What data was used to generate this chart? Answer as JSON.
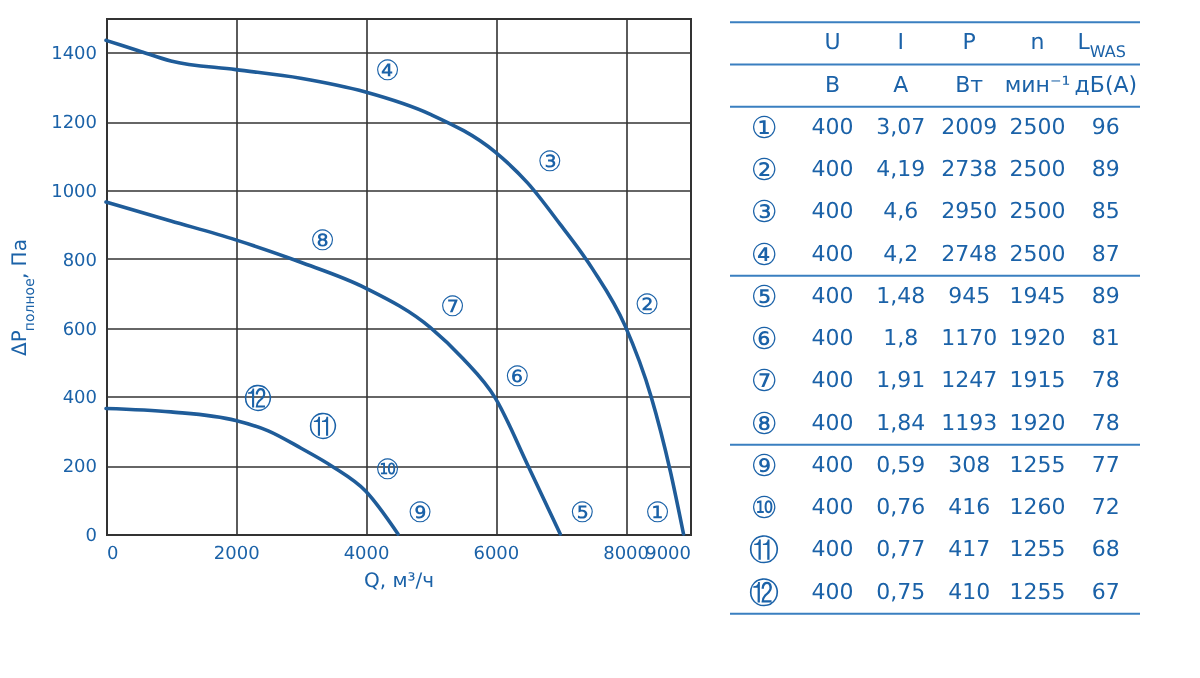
{
  "chart_data": [
    {
      "type": "line",
      "xlabel": "Q, м³/ч",
      "ylabel": "ΔP$_{полное}$, Па",
      "xlim": [
        0,
        9000
      ],
      "ylim": [
        0,
        1500
      ],
      "xticks": [
        0,
        2000,
        4000,
        6000,
        8000,
        9000
      ],
      "yticks": [
        0,
        200,
        400,
        600,
        800,
        1000,
        1200,
        1400
      ],
      "grid": true,
      "legend": false,
      "marker": "none",
      "line_style": "solid",
      "series": [
        {
          "color": "#1f5c99",
          "x": [
            0,
            500,
            1000,
            2000,
            3000,
            4000,
            5000,
            6000,
            6500,
            7000,
            7500,
            8000,
            8400,
            8700,
            8900
          ],
          "values": [
            1435,
            1405,
            1375,
            1350,
            1325,
            1285,
            1220,
            1110,
            1020,
            900,
            770,
            605,
            400,
            180,
            0
          ]
        },
        {
          "color": "#1f5c99",
          "x": [
            0,
            1000,
            2000,
            3000,
            4000,
            5000,
            5500,
            6000,
            6500,
            7000
          ],
          "values": [
            965,
            910,
            855,
            790,
            715,
            600,
            510,
            395,
            200,
            0
          ]
        },
        {
          "color": "#1f5c99",
          "x": [
            0,
            1000,
            2000,
            2500,
            3000,
            3500,
            4000,
            4500
          ],
          "values": [
            365,
            355,
            330,
            300,
            250,
            195,
            125,
            0
          ]
        }
      ],
      "annotations": [
        {
          "text": "①",
          "x": 8900,
          "y": 0
        },
        {
          "text": "②",
          "x": 8000,
          "y": 605
        },
        {
          "text": "③",
          "x": 6500,
          "y": 1020
        },
        {
          "text": "④",
          "x": 4000,
          "y": 1285
        },
        {
          "text": "⑤",
          "x": 7000,
          "y": 0
        },
        {
          "text": "⑥",
          "x": 6000,
          "y": 395
        },
        {
          "text": "⑦",
          "x": 5000,
          "y": 600
        },
        {
          "text": "⑧",
          "x": 3000,
          "y": 790
        },
        {
          "text": "⑨",
          "x": 4500,
          "y": 0
        },
        {
          "text": "⑩",
          "x": 4000,
          "y": 125
        },
        {
          "text": "⑪",
          "x": 3000,
          "y": 250
        },
        {
          "text": "⑫",
          "x": 2000,
          "y": 330
        }
      ]
    },
    {
      "type": "other",
      "annotations": [
        "U",
        "I",
        "P",
        "n",
        "L$_{WAS}$",
        "В",
        "А",
        "Вт",
        "мин⁻¹",
        "дБ(А)",
        "①",
        "400",
        "3,07",
        "2009",
        "2500",
        "96",
        "②",
        "400",
        "4,19",
        "2738",
        "2500",
        "89",
        "③",
        "400",
        "4,6",
        "2950",
        "2500",
        "85",
        "④",
        "400",
        "4,2",
        "2748",
        "2500",
        "87",
        "⑤",
        "400",
        "1,48",
        "945",
        "1945",
        "89",
        "⑥",
        "400",
        "1,8",
        "1170",
        "1920",
        "81",
        "⑦",
        "400",
        "1,91",
        "1247",
        "1915",
        "78",
        "⑧",
        "400",
        "1,84",
        "1193",
        "1920",
        "78",
        "⑨",
        "400",
        "0,59",
        "308",
        "1255",
        "77",
        "⑩",
        "400",
        "0,76",
        "416",
        "1260",
        "72",
        "⑪",
        "400",
        "0,77",
        "417",
        "1255",
        "68",
        "⑫",
        "400",
        "0,75",
        "410",
        "1255",
        "67"
      ]
    }
  ]
}
